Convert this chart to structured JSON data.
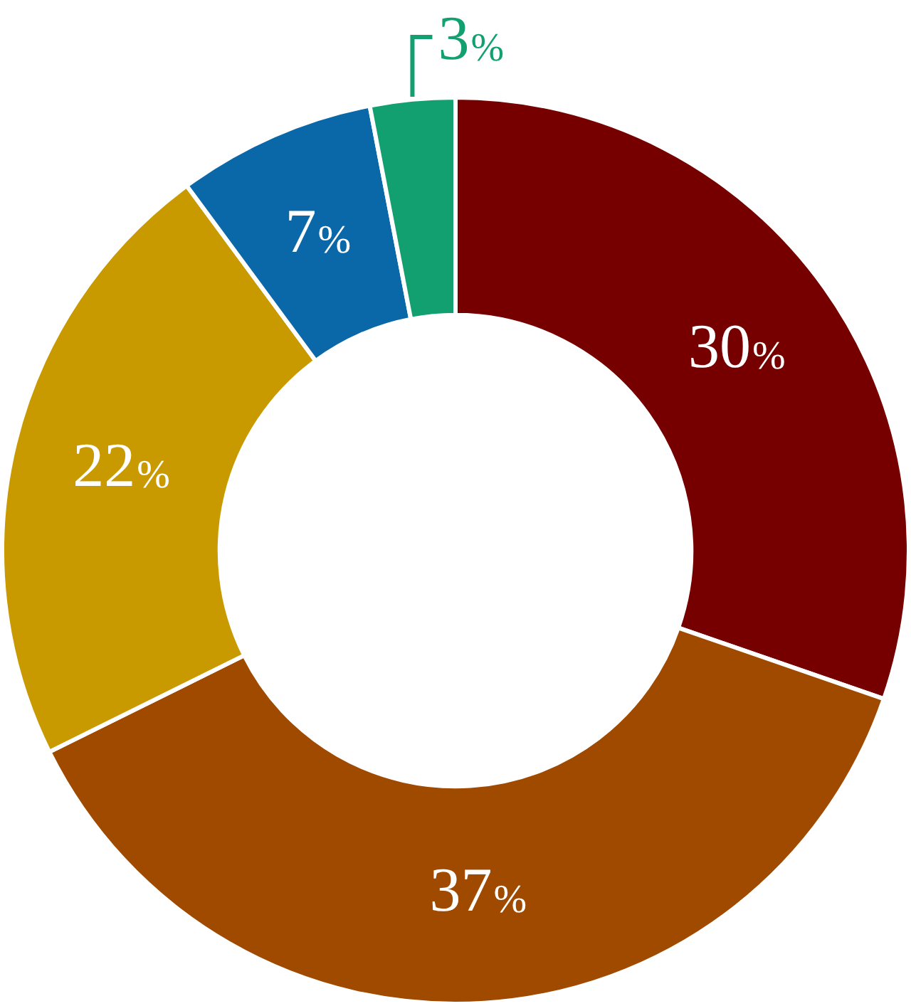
{
  "chart_data": {
    "type": "donut",
    "categories": [
      null,
      null,
      null,
      null,
      null
    ],
    "values": [
      30,
      37,
      22,
      7,
      3
    ],
    "colors": [
      "#760000",
      "#a04a00",
      "#c99a00",
      "#0a68a8",
      "#13a070"
    ],
    "value_labels": [
      "30%",
      "37%",
      "22%",
      "7%",
      "3%"
    ],
    "legend": false
  }
}
